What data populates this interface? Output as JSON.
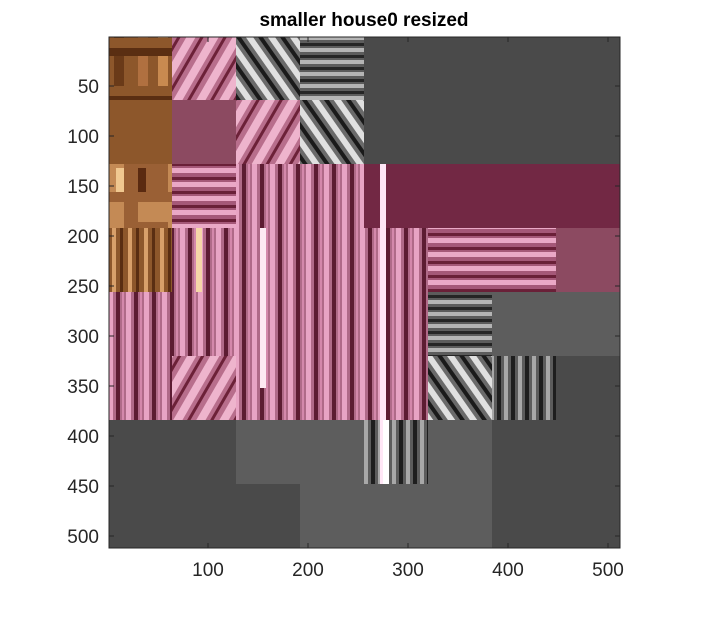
{
  "chart_data": {
    "type": "heatmap",
    "title": "smaller house0 resized",
    "xlabel": "",
    "ylabel": "",
    "x_range": [
      1,
      512
    ],
    "y_range": [
      1,
      512
    ],
    "y_axis_direction": "top-to-bottom",
    "grid": false,
    "legend": "none",
    "x_ticks": [
      100,
      200,
      300,
      400,
      500
    ],
    "y_ticks": [
      50,
      100,
      150,
      200,
      250,
      300,
      350,
      400,
      450,
      500
    ],
    "tiles": [
      {
        "x": [
          1,
          64
        ],
        "y": [
          1,
          64
        ],
        "fill": "pattern-wood-a"
      },
      {
        "x": [
          64,
          128
        ],
        "y": [
          1,
          64
        ],
        "fill": "pattern-pink-diag"
      },
      {
        "x": [
          128,
          192
        ],
        "y": [
          1,
          64
        ],
        "fill": "pattern-gray-diag"
      },
      {
        "x": [
          192,
          256
        ],
        "y": [
          1,
          64
        ],
        "fill": "pattern-gray-stripes-h"
      },
      {
        "x": [
          256,
          512
        ],
        "y": [
          1,
          64
        ],
        "fill": "#4a4a4a"
      },
      {
        "x": [
          1,
          64
        ],
        "y": [
          64,
          128
        ],
        "fill": "#8d572b"
      },
      {
        "x": [
          64,
          128
        ],
        "y": [
          64,
          128
        ],
        "fill": "#8c4a61"
      },
      {
        "x": [
          128,
          192
        ],
        "y": [
          64,
          128
        ],
        "fill": "pattern-pink-diag"
      },
      {
        "x": [
          192,
          256
        ],
        "y": [
          64,
          128
        ],
        "fill": "pattern-gray-diag"
      },
      {
        "x": [
          256,
          512
        ],
        "y": [
          64,
          128
        ],
        "fill": "#4a4a4a"
      },
      {
        "x": [
          1,
          64
        ],
        "y": [
          128,
          192
        ],
        "fill": "pattern-wood-b"
      },
      {
        "x": [
          64,
          128
        ],
        "y": [
          128,
          192
        ],
        "fill": "pattern-pink-stripes-h"
      },
      {
        "x": [
          128,
          256
        ],
        "y": [
          128,
          256
        ],
        "fill": "pattern-pink-stripes-v"
      },
      {
        "x": [
          256,
          512
        ],
        "y": [
          128,
          192
        ],
        "fill": "#722844"
      },
      {
        "x": [
          1,
          64
        ],
        "y": [
          192,
          256
        ],
        "fill": "pattern-wood-stripes-v"
      },
      {
        "x": [
          64,
          128
        ],
        "y": [
          192,
          256
        ],
        "fill": "pattern-pink-stripes-v"
      },
      {
        "x": [
          256,
          320
        ],
        "y": [
          192,
          256
        ],
        "fill": "pattern-pink-stripes-v"
      },
      {
        "x": [
          320,
          384
        ],
        "y": [
          192,
          256
        ],
        "fill": "pattern-pink-stripes-h"
      },
      {
        "x": [
          384,
          448
        ],
        "y": [
          192,
          256
        ],
        "fill": "pattern-pink-stripes-h"
      },
      {
        "x": [
          448,
          512
        ],
        "y": [
          192,
          256
        ],
        "fill": "#8c4a61"
      },
      {
        "x": [
          1,
          64
        ],
        "y": [
          256,
          320
        ],
        "fill": "pattern-pink-stripes-v"
      },
      {
        "x": [
          64,
          256
        ],
        "y": [
          256,
          320
        ],
        "fill": "pattern-pink-stripes-v"
      },
      {
        "x": [
          256,
          320
        ],
        "y": [
          256,
          320
        ],
        "fill": "pattern-pink-stripes-v"
      },
      {
        "x": [
          320,
          384
        ],
        "y": [
          256,
          320
        ],
        "fill": "pattern-gray-stripes-h"
      },
      {
        "x": [
          384,
          512
        ],
        "y": [
          256,
          320
        ],
        "fill": "#5d5d5d"
      },
      {
        "x": [
          1,
          64
        ],
        "y": [
          320,
          384
        ],
        "fill": "pattern-pink-stripes-v"
      },
      {
        "x": [
          64,
          128
        ],
        "y": [
          320,
          384
        ],
        "fill": "pattern-pink-diag"
      },
      {
        "x": [
          128,
          256
        ],
        "y": [
          320,
          384
        ],
        "fill": "pattern-pink-stripes-v"
      },
      {
        "x": [
          256,
          320
        ],
        "y": [
          320,
          384
        ],
        "fill": "pattern-pink-stripes-v"
      },
      {
        "x": [
          320,
          384
        ],
        "y": [
          320,
          384
        ],
        "fill": "pattern-gray-diag"
      },
      {
        "x": [
          384,
          448
        ],
        "y": [
          320,
          384
        ],
        "fill": "pattern-gray-stripes-v"
      },
      {
        "x": [
          448,
          512
        ],
        "y": [
          320,
          384
        ],
        "fill": "#4a4a4a"
      },
      {
        "x": [
          1,
          128
        ],
        "y": [
          384,
          448
        ],
        "fill": "#4a4a4a"
      },
      {
        "x": [
          128,
          256
        ],
        "y": [
          384,
          448
        ],
        "fill": "#5d5d5d"
      },
      {
        "x": [
          256,
          320
        ],
        "y": [
          384,
          448
        ],
        "fill": "pattern-gray-stripes-v"
      },
      {
        "x": [
          320,
          384
        ],
        "y": [
          384,
          448
        ],
        "fill": "#5d5d5d"
      },
      {
        "x": [
          384,
          512
        ],
        "y": [
          384,
          448
        ],
        "fill": "#4a4a4a"
      },
      {
        "x": [
          1,
          192
        ],
        "y": [
          448,
          512
        ],
        "fill": "#4a4a4a"
      },
      {
        "x": [
          192,
          384
        ],
        "y": [
          448,
          512
        ],
        "fill": "#5d5d5d"
      },
      {
        "x": [
          384,
          512
        ],
        "y": [
          448,
          512
        ],
        "fill": "#4a4a4a"
      }
    ],
    "highlight_lines": [
      {
        "x": 91,
        "y": [
          192,
          256
        ],
        "color": "#f5d6a8"
      },
      {
        "x": 155,
        "y": [
          192,
          352
        ],
        "color": "#fde8f2"
      },
      {
        "x": 275,
        "y": [
          128,
          448
        ],
        "color": "#ffe6f6"
      },
      {
        "x": 278,
        "y": [
          384,
          448
        ],
        "color": "#ffffff"
      }
    ],
    "colors": {
      "background": "#ffffff",
      "axis": "#262626"
    }
  }
}
